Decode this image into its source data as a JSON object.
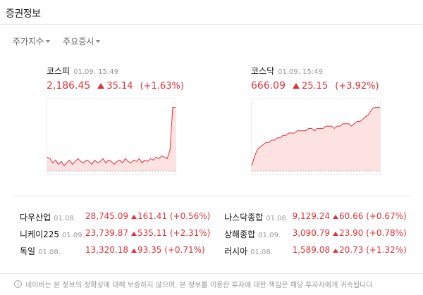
{
  "header": {
    "title": "증권정보"
  },
  "tabs": [
    {
      "label": "주가지수"
    },
    {
      "label": "주요증시"
    }
  ],
  "charts": [
    {
      "name": "코스피",
      "time": "01.09. 15:49",
      "value": "2,186.45",
      "change": "35.14",
      "percent": "(+1.63%)",
      "direction": "up",
      "chart_data": {
        "type": "area",
        "y": [
          2151,
          2150,
          2147,
          2149,
          2146,
          2148,
          2145,
          2147,
          2149,
          2146,
          2148,
          2150,
          2148,
          2147,
          2149,
          2148,
          2146,
          2149,
          2147,
          2148,
          2150,
          2147,
          2149,
          2148,
          2146,
          2148,
          2149,
          2147,
          2150,
          2148,
          2147,
          2149,
          2148,
          2150,
          2147,
          2149,
          2148,
          2150,
          2149,
          2151,
          2150,
          2152,
          2151,
          2150,
          2156,
          2186,
          2186
        ]
      }
    },
    {
      "name": "코스닥",
      "time": "01.09. 15:49",
      "value": "666.09",
      "change": "25.15",
      "percent": "(+3.92%)",
      "direction": "up",
      "chart_data": {
        "type": "area",
        "y": [
          641,
          645,
          648,
          649,
          650,
          651,
          651,
          652,
          652,
          653,
          653,
          654,
          654,
          655,
          655,
          655,
          656,
          656,
          656,
          656,
          657,
          657,
          656,
          657,
          657,
          657,
          658,
          658,
          658,
          657,
          658,
          658,
          659,
          659,
          659,
          658,
          659,
          660,
          660,
          661,
          662,
          663,
          665,
          666,
          666,
          666
        ]
      }
    }
  ],
  "indices": [
    {
      "name": "다우산업",
      "date": "01.08.",
      "value": "28,745.09",
      "change": "161.41",
      "percent": "(+0.56%)"
    },
    {
      "name": "나스닥종합",
      "date": "01.08.",
      "value": "9,129.24",
      "change": "60.66",
      "percent": "(+0.67%)"
    },
    {
      "name": "니케이225",
      "date": "01.09.",
      "value": "23,739.87",
      "change": "535.11",
      "percent": "(+2.31%)"
    },
    {
      "name": "상해종합",
      "date": "01.09.",
      "value": "3,090.79",
      "change": "23.90",
      "percent": "(+0.78%)"
    },
    {
      "name": "독일",
      "date": "01.08.",
      "value": "13,320.18",
      "change": "93.35",
      "percent": "(+0.71%)"
    },
    {
      "name": "러시아",
      "date": "01.08.",
      "value": "1,589.08",
      "change": "20.73",
      "percent": "(+1.32%)"
    }
  ],
  "notice": {
    "text": "네이버는 본 정보의 정확성에 대해 보증하지 않으며, 본 정보를 이용한 투자에 대한 책임은 해당 투자자에게 귀속됩니다."
  },
  "colors": {
    "up": "#e0313b",
    "area_fill": "#fde2e2",
    "base_line": "#bbbbbb"
  },
  "icons": {
    "info": "info-icon",
    "caret": "caret-down-icon",
    "up_arrow": "triangle-up-icon"
  }
}
